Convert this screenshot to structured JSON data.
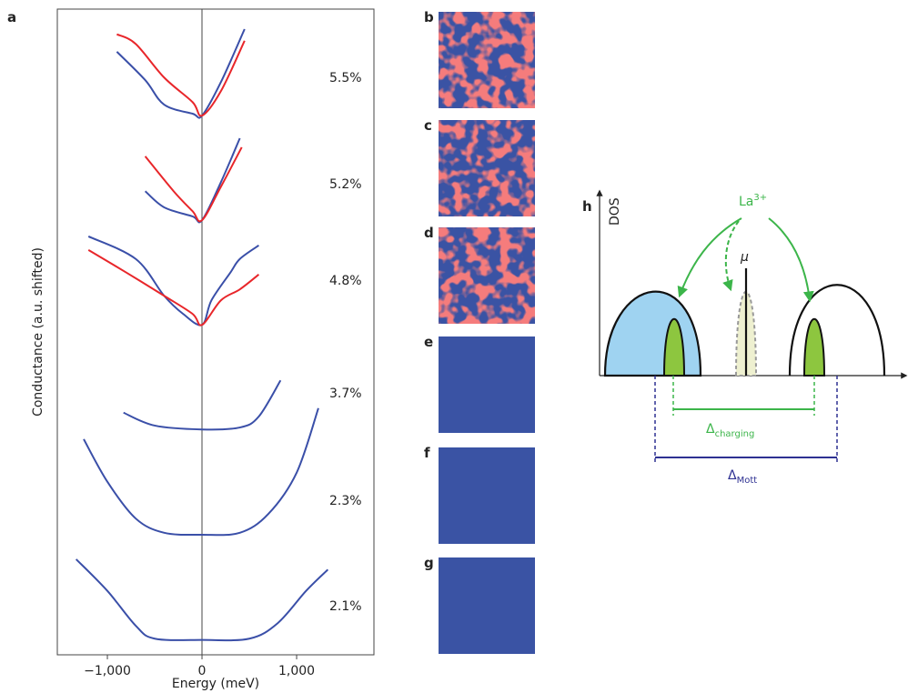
{
  "chart_data": {
    "type": "line",
    "panel_label": "a",
    "x_label": "Energy (meV)",
    "y_label": "Conductance (a.u. shifted)",
    "xlim": [
      -1529,
      1817
    ],
    "xticks": [
      {
        "value": -1000,
        "label": "−1,000"
      },
      0,
      {
        "value": 1000,
        "label": "1,000"
      }
    ],
    "ylim": [
      0,
      10
    ],
    "series": [
      {
        "name": "5.5%",
        "color": "#3a4fa8",
        "x": [
          -900,
          -600,
          -400,
          -100,
          0,
          200,
          450
        ],
        "values": [
          9.34,
          8.9,
          8.52,
          8.38,
          8.35,
          8.87,
          9.69
        ]
      },
      {
        "color": "#e8262a",
        "x": [
          -900,
          -700,
          -400,
          -100,
          0,
          200,
          450
        ],
        "values": [
          9.61,
          9.46,
          8.94,
          8.56,
          8.35,
          8.73,
          9.51
        ]
      },
      {
        "name": "5.2%",
        "color": "#3a4fa8",
        "x": [
          -600,
          -400,
          -100,
          0,
          200,
          400
        ],
        "values": [
          7.18,
          6.93,
          6.79,
          6.73,
          7.32,
          8.0
        ]
      },
      {
        "color": "#e8262a",
        "x": [
          -600,
          -300,
          -100,
          0,
          200,
          420
        ],
        "values": [
          7.72,
          7.18,
          6.87,
          6.73,
          7.25,
          7.86
        ]
      },
      {
        "name": "4.8%",
        "color": "#3a4fa8",
        "x": [
          -1200,
          -700,
          -400,
          -200,
          0,
          100,
          300,
          400,
          600
        ],
        "values": [
          6.48,
          6.13,
          5.56,
          5.28,
          5.11,
          5.49,
          5.92,
          6.13,
          6.34
        ]
      },
      {
        "color": "#e8262a",
        "x": [
          -1200,
          -800,
          -400,
          -100,
          0,
          200,
          400,
          600
        ],
        "values": [
          6.27,
          5.92,
          5.56,
          5.28,
          5.11,
          5.49,
          5.66,
          5.89
        ]
      },
      {
        "name": "3.7%",
        "color": "#3a4fa8",
        "x": [
          -830,
          -500,
          0,
          400,
          600,
          830
        ],
        "values": [
          3.75,
          3.55,
          3.49,
          3.52,
          3.69,
          4.25
        ]
      },
      {
        "name": "2.3%",
        "color": "#3a4fa8",
        "x": [
          -1250,
          -1000,
          -700,
          -400,
          0,
          400,
          700,
          1000,
          1230
        ],
        "values": [
          3.34,
          2.68,
          2.11,
          1.89,
          1.86,
          1.89,
          2.18,
          2.82,
          3.82
        ]
      },
      {
        "name": "2.1%",
        "color": "#3a4fa8",
        "x": [
          -1330,
          -1000,
          -700,
          -500,
          0,
          500,
          800,
          1100,
          1330
        ],
        "values": [
          1.48,
          0.99,
          0.45,
          0.25,
          0.23,
          0.25,
          0.49,
          0.99,
          1.32
        ]
      }
    ]
  },
  "maps": [
    "b",
    "c",
    "d",
    "e",
    "f",
    "g"
  ],
  "diagram": {
    "label": "h",
    "y_axis": "DOS",
    "dopant": "La",
    "dopant_charge": "3+",
    "chemical_potential": "μ",
    "charging_gap": "Δ",
    "charging_sub": "charging",
    "mott_gap": "Δ",
    "mott_sub": "Mott"
  }
}
